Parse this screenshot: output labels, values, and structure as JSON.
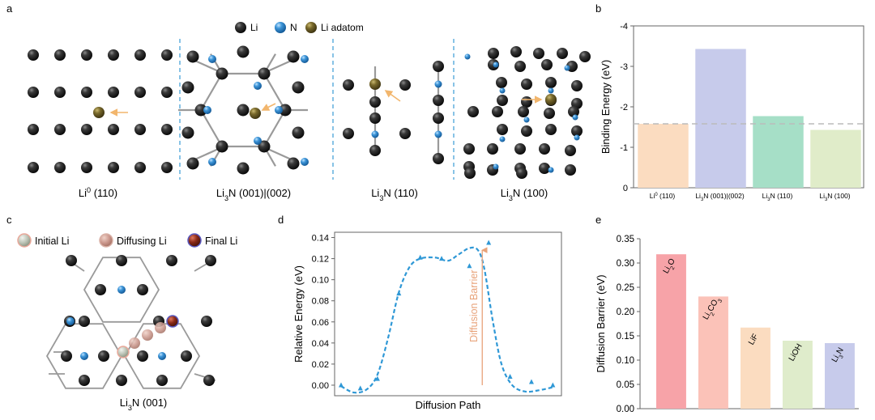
{
  "panel_letters": {
    "a": "a",
    "b": "b",
    "c": "c",
    "d": "d",
    "e": "e"
  },
  "colors": {
    "li": "#1c1c1c",
    "n": "#2f86c9",
    "adatom": "#7a6a2c",
    "arrow": "#f2b66d",
    "dash": "#3a9bd5",
    "curve": "#2f98d6",
    "barrier": "#e8a37a"
  },
  "panel_a": {
    "legend": [
      {
        "label": "Li",
        "color": "#1c1c1c"
      },
      {
        "label": "N",
        "color": "#2f86c9"
      },
      {
        "label": "Li adatom",
        "color": "#7a6a2c"
      }
    ],
    "structures": [
      {
        "name": "Li",
        "sup": "0",
        "rest": " (110)"
      },
      {
        "name": "Li",
        "sub": "3",
        "rest": "N (001)|(002)"
      },
      {
        "name": "Li",
        "sub": "3",
        "rest": "N (110)"
      },
      {
        "name": "Li",
        "sub": "3",
        "rest": "N (100)"
      }
    ]
  },
  "panel_c": {
    "legend": [
      {
        "label": "Initial Li",
        "color": "#c6ccc1",
        "ring": "#e9a89a"
      },
      {
        "label": "Diffusing Li",
        "color": "#c9958a",
        "ring": "#d9b0a5"
      },
      {
        "label": "Final Li",
        "color": "#8a2a18",
        "ring": "#5a5ac0"
      }
    ],
    "structure": {
      "name": "Li",
      "sub": "3",
      "rest": "N (001)"
    }
  },
  "chart_data": [
    {
      "panel": "b",
      "type": "bar",
      "categories": [
        {
          "name": "Li",
          "sup": "0",
          "rest": " (110)"
        },
        {
          "name": "Li",
          "sub": "3",
          "rest": "N (001)|(002)"
        },
        {
          "name": "Li",
          "sub": "3",
          "rest": "N (110)"
        },
        {
          "name": "Li",
          "sub": "3",
          "rest": "N (100)"
        }
      ],
      "values": [
        -1.58,
        -3.43,
        -1.77,
        -1.43
      ],
      "colors": [
        "#fbdcc0",
        "#c7cbeb",
        "#a6dfc7",
        "#e0ecc9"
      ],
      "reference_line": -1.58,
      "ylabel": "Binding Energy (eV)",
      "ylim": [
        -4,
        0
      ],
      "yticks": [
        -4,
        -3,
        -2,
        -1,
        0
      ],
      "y_inverted": true
    },
    {
      "panel": "d",
      "type": "line",
      "xlabel": "Diffusion Path",
      "ylabel": "Relative Energy (eV)",
      "ylim": [
        -0.01,
        0.145
      ],
      "yticks": [
        0.0,
        0.02,
        0.04,
        0.06,
        0.08,
        0.1,
        0.12,
        0.14
      ],
      "points": [
        [
          0,
          0.0
        ],
        [
          0.09,
          -0.003
        ],
        [
          0.17,
          0.006
        ],
        [
          0.27,
          0.087
        ],
        [
          0.37,
          0.121
        ],
        [
          0.47,
          0.12
        ],
        [
          0.6,
          0.113
        ],
        [
          0.69,
          0.135
        ],
        [
          0.79,
          0.008
        ],
        [
          0.89,
          0.003
        ],
        [
          0.99,
          0.0
        ]
      ],
      "curve": [
        [
          0,
          -0.001
        ],
        [
          0.06,
          -0.007
        ],
        [
          0.12,
          -0.004
        ],
        [
          0.17,
          0.01
        ],
        [
          0.22,
          0.045
        ],
        [
          0.27,
          0.088
        ],
        [
          0.32,
          0.112
        ],
        [
          0.37,
          0.12
        ],
        [
          0.44,
          0.121
        ],
        [
          0.5,
          0.118
        ],
        [
          0.55,
          0.124
        ],
        [
          0.6,
          0.13
        ],
        [
          0.64,
          0.128
        ],
        [
          0.67,
          0.11
        ],
        [
          0.71,
          0.06
        ],
        [
          0.75,
          0.02
        ],
        [
          0.8,
          0.0
        ],
        [
          0.86,
          -0.006
        ],
        [
          0.92,
          -0.005
        ],
        [
          0.99,
          -0.002
        ]
      ],
      "annotation": "Diffusion Barrier"
    },
    {
      "panel": "e",
      "type": "bar",
      "ylabel": "Diffusion Barrier (eV)",
      "ylim": [
        0,
        0.35
      ],
      "yticks": [
        0.0,
        0.05,
        0.1,
        0.15,
        0.2,
        0.25,
        0.3,
        0.35
      ],
      "bars": [
        {
          "value": 0.318,
          "color": "#f7a3a8",
          "label": [
            {
              "t": "Li"
            },
            {
              "t": "2",
              "sub": true
            },
            {
              "t": "O"
            }
          ]
        },
        {
          "value": 0.231,
          "color": "#fbc2b8",
          "label": [
            {
              "t": "Li"
            },
            {
              "t": "2",
              "sub": true
            },
            {
              "t": "CO"
            },
            {
              "t": "3",
              "sub": true
            }
          ]
        },
        {
          "value": 0.167,
          "color": "#fbdcc0",
          "label": [
            {
              "t": "LiF"
            }
          ]
        },
        {
          "value": 0.14,
          "color": "#dfeccb",
          "label": [
            {
              "t": "LiOH"
            }
          ]
        },
        {
          "value": 0.135,
          "color": "#c7cbeb",
          "label": [
            {
              "t": "Li"
            },
            {
              "t": "3",
              "sub": true
            },
            {
              "t": "N"
            }
          ]
        }
      ]
    }
  ]
}
